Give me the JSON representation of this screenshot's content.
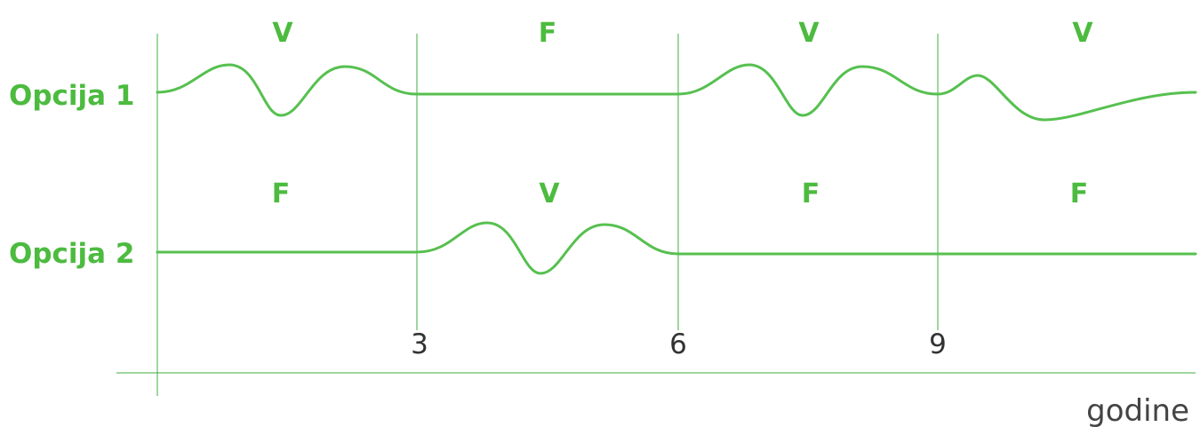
{
  "colors": {
    "accent": "#4cbb3f",
    "line": "#56c04f",
    "text": "#333333"
  },
  "rows": [
    {
      "label": "Opcija 1",
      "periods": [
        "V",
        "F",
        "V",
        "V"
      ]
    },
    {
      "label": "Opcija 2",
      "periods": [
        "F",
        "V",
        "F",
        "F"
      ]
    }
  ],
  "axis": {
    "ticks": [
      "3",
      "6",
      "9"
    ],
    "title": "godine"
  }
}
